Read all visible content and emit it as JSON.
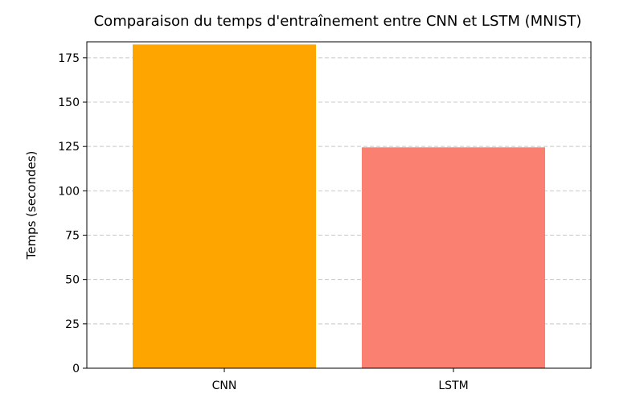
{
  "chart_data": {
    "type": "bar",
    "title": "Comparaison du temps d'entraînement entre CNN et LSTM (MNIST)",
    "xlabel": "",
    "ylabel": "Temps (secondes)",
    "categories": [
      "CNN",
      "LSTM"
    ],
    "values": [
      182.5,
      124.5
    ],
    "colors": [
      "#ffa500",
      "#fa8072"
    ],
    "ylim": [
      0,
      184
    ],
    "yticks": [
      0,
      25,
      50,
      75,
      100,
      125,
      150,
      175
    ],
    "grid": "y-dashed",
    "legend": "none"
  }
}
